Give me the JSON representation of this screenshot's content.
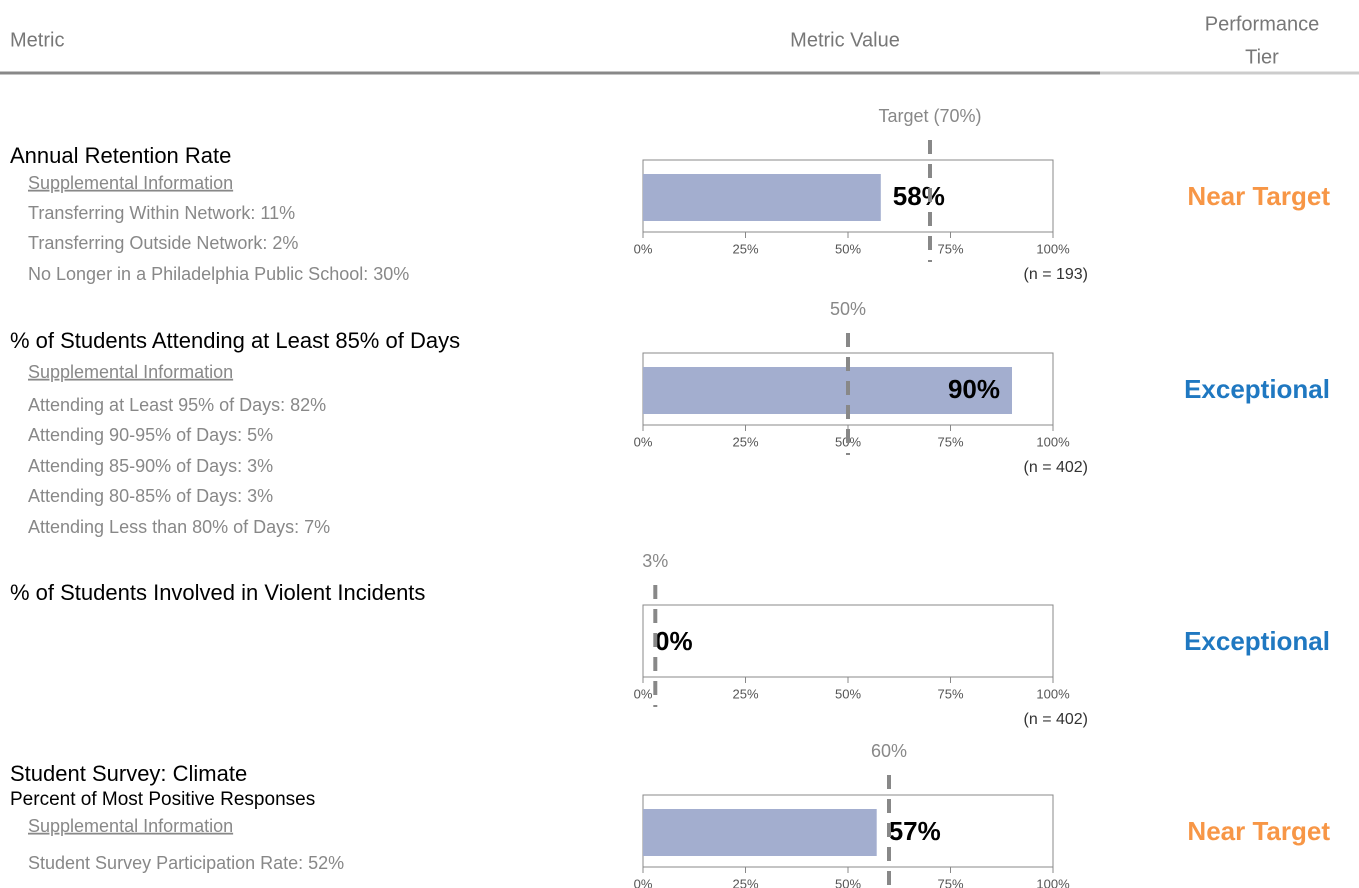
{
  "header": {
    "metric": "Metric",
    "value": "Metric Value",
    "tier": [
      "Performance",
      "Tier"
    ]
  },
  "axis": {
    "xlim": [
      0,
      100
    ],
    "xticks": [
      {
        "value": 0,
        "label": "0%"
      },
      {
        "value": 25,
        "label": "25%"
      },
      {
        "value": 50,
        "label": "50%"
      },
      {
        "value": 75,
        "label": "75%"
      },
      {
        "value": 100,
        "label": "100%"
      }
    ]
  },
  "bar_color": "#a3aecf",
  "rows": [
    {
      "title": "Annual Retention Rate",
      "supplemental_heading": "Supplemental Information",
      "details": [
        "Transferring Within Network:  11%",
        "Transferring Outside Network:  2%",
        "No Longer in a Philadelphia Public School:  30%"
      ],
      "chart": {
        "type": "bar",
        "value": 58,
        "value_label": "58%",
        "target": 70,
        "target_label": "Target (70%)",
        "n_label": "(n = 193)"
      },
      "tier": "Near Target",
      "tier_color": "#f79646"
    },
    {
      "title": "% of Students Attending at Least 85% of Days",
      "supplemental_heading": "Supplemental Information",
      "details": [
        "Attending at Least 95% of Days:  82%",
        "Attending 90-95% of Days:  5%",
        "Attending 85-90% of Days:  3%",
        "Attending 80-85% of Days:  3%",
        "Attending Less than 80% of Days:  7%"
      ],
      "chart": {
        "type": "bar",
        "value": 90,
        "value_label": "90%",
        "target": 50,
        "target_label": "50%",
        "n_label": "(n = 402)"
      },
      "tier": "Exceptional",
      "tier_color": "#1f78c1"
    },
    {
      "title": "% of Students Involved in Violent Incidents",
      "chart": {
        "type": "bar",
        "value": 0,
        "value_label": "0%",
        "target": 3,
        "target_label": "3%",
        "n_label": "(n = 402)"
      },
      "tier": "Exceptional",
      "tier_color": "#1f78c1"
    },
    {
      "title": "Student Survey: Climate",
      "subtitle": "Percent of Most Positive Responses",
      "supplemental_heading": "Supplemental Information",
      "details": [
        "Student Survey Participation Rate:  52%"
      ],
      "chart": {
        "type": "bar",
        "value": 57,
        "value_label": "57%",
        "target": 60,
        "target_label": "60%"
      },
      "tier": "Near Target",
      "tier_color": "#f79646"
    }
  ]
}
